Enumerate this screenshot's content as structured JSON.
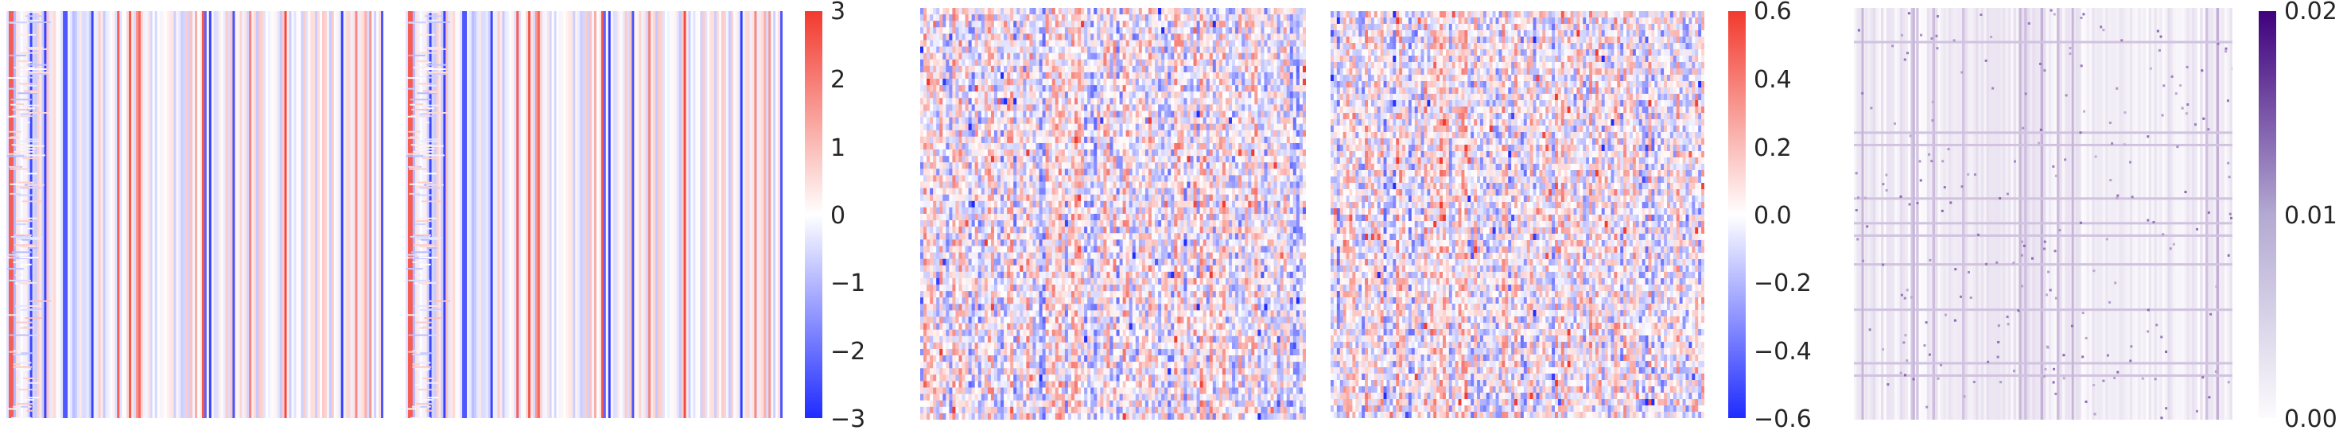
{
  "chart_data": [
    {
      "type": "heatmap",
      "title": "",
      "xlabel": "",
      "ylabel": "",
      "panels": 2,
      "colormap": "bwr",
      "colors": {
        "low": "#1f2bff",
        "mid": "#ffffff",
        "high": "#f23a2e"
      },
      "zlim": [
        -3,
        3
      ],
      "colorbar": {
        "ticks": [
          3,
          2,
          1,
          0,
          -1,
          -2,
          -3
        ],
        "tick_labels": [
          "3",
          "2",
          "1",
          "0",
          "−1",
          "−2",
          "−3"
        ]
      },
      "pattern": "strong vertical column structure; several saturated blue and red columns shared by both panels"
    },
    {
      "type": "heatmap",
      "title": "",
      "xlabel": "",
      "ylabel": "",
      "panels": 2,
      "colormap": "bwr",
      "colors": {
        "low": "#1f2bff",
        "mid": "#ffffff",
        "high": "#f23a2e"
      },
      "zlim": [
        -0.6,
        0.6
      ],
      "colorbar": {
        "ticks": [
          0.6,
          0.4,
          0.2,
          0.0,
          -0.2,
          -0.4,
          -0.6
        ],
        "tick_labels": [
          "0.6",
          "0.4",
          "0.2",
          "0.0",
          "−0.2",
          "−0.4",
          "−0.6"
        ]
      },
      "pattern": "dense fine-grained red/blue noise with weak vertical banding"
    },
    {
      "type": "heatmap",
      "title": "",
      "xlabel": "",
      "ylabel": "",
      "panels": 1,
      "colormap": "Purples",
      "colors": {
        "low": "#fcfbfd",
        "high": "#3f007d"
      },
      "zlim": [
        0.0,
        0.02
      ],
      "colorbar": {
        "ticks": [
          0.02,
          0.01,
          0.0
        ],
        "tick_labels": [
          "0.02",
          "0.01",
          "0.00"
        ]
      },
      "pattern": "mostly near-zero, faint lavender with sparse darker rows and columns"
    }
  ]
}
